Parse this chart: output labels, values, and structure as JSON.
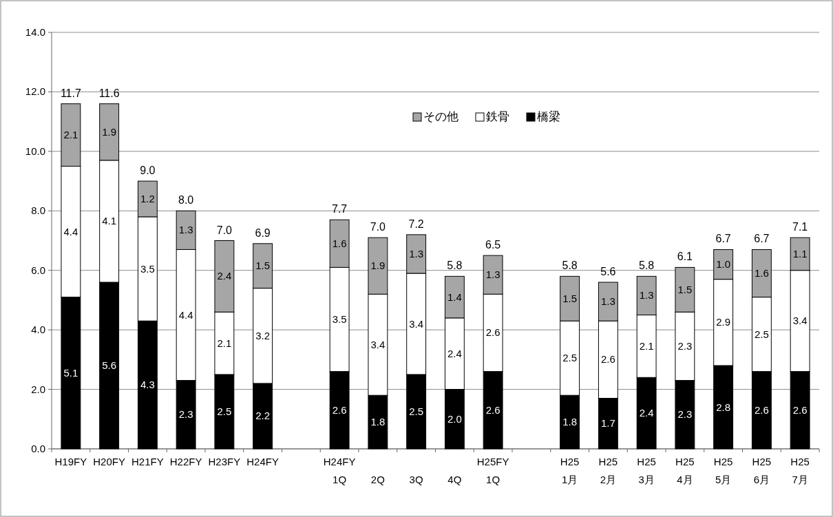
{
  "chart_data": {
    "type": "bar",
    "stacked": true,
    "legend": "top",
    "grid": "y",
    "categories": [
      "H19FY",
      "H20FY",
      "H21FY",
      "H22FY",
      "H23FY",
      "H24FY",
      null,
      "H24FY\n1Q",
      "\n2Q",
      "\n3Q",
      "\n4Q",
      "H25FY\n1Q",
      null,
      "H25\n1月",
      "H25\n2月",
      "H25\n3月",
      "H25\n4月",
      "H25\n5月",
      "H25\n6月",
      "H25\n7月"
    ],
    "ylim": [
      0,
      14
    ],
    "yticks": [
      {
        "value": 0,
        "label": "0.0"
      },
      {
        "value": 2,
        "label": "2.0"
      },
      {
        "value": 4,
        "label": "4.0"
      },
      {
        "value": 6,
        "label": "6.0"
      },
      {
        "value": 8,
        "label": "8.0"
      },
      {
        "value": 10,
        "label": "10.0"
      },
      {
        "value": 12,
        "label": "12.0"
      },
      {
        "value": 14,
        "label": "14.0"
      }
    ],
    "series": [
      {
        "name": "橋梁",
        "color": "#000000",
        "values": [
          5.1,
          5.6,
          4.3,
          2.3,
          2.5,
          2.2,
          null,
          2.6,
          1.8,
          2.5,
          2.0,
          2.6,
          null,
          1.8,
          1.7,
          2.4,
          2.3,
          2.8,
          2.6,
          2.6
        ],
        "value_labels": [
          "5.1",
          "5.6",
          "4.3",
          "2.3",
          "2.5",
          "2.2",
          null,
          "2.6",
          "1.8",
          "2.5",
          "2.0",
          "2.6",
          null,
          "1.8",
          "1.7",
          "2.4",
          "2.3",
          "2.8",
          "2.6",
          "2.6"
        ]
      },
      {
        "name": "鉄骨",
        "color": "#ffffff",
        "values": [
          4.4,
          4.1,
          3.5,
          4.4,
          2.1,
          3.2,
          null,
          3.5,
          3.4,
          3.4,
          2.4,
          2.6,
          null,
          2.5,
          2.6,
          2.1,
          2.3,
          2.9,
          2.5,
          3.4
        ],
        "value_labels": [
          "4.4",
          "4.1",
          "3.5",
          "4.4",
          "2.1",
          "3.2",
          null,
          "3.5",
          "3.4",
          "3.4",
          "2.4",
          "2.6",
          null,
          "2.5",
          "2.6",
          "2.1",
          "2.3",
          "2.9",
          "2.5",
          "3.4"
        ]
      },
      {
        "name": "その他",
        "color": "#a6a6a6",
        "values": [
          2.1,
          1.9,
          1.2,
          1.3,
          2.4,
          1.5,
          null,
          1.6,
          1.9,
          1.3,
          1.4,
          1.3,
          null,
          1.5,
          1.3,
          1.3,
          1.5,
          1.0,
          1.6,
          1.1
        ],
        "value_labels": [
          "2.1",
          "1.9",
          "1.2",
          "1.3",
          "2.4",
          "1.5",
          null,
          "1.6",
          "1.9",
          "1.3",
          "1.4",
          "1.3",
          null,
          "1.5",
          "1.3",
          "1.3",
          "1.5",
          "1.0",
          "1.6",
          "1.1"
        ]
      }
    ],
    "totals": [
      "11.7",
      "11.6",
      "9.0",
      "8.0",
      "7.0",
      "6.9",
      null,
      "7.7",
      "7.0",
      "7.2",
      "5.8",
      "6.5",
      null,
      "5.8",
      "5.6",
      "5.8",
      "6.1",
      "6.7",
      "6.7",
      "7.1"
    ]
  }
}
